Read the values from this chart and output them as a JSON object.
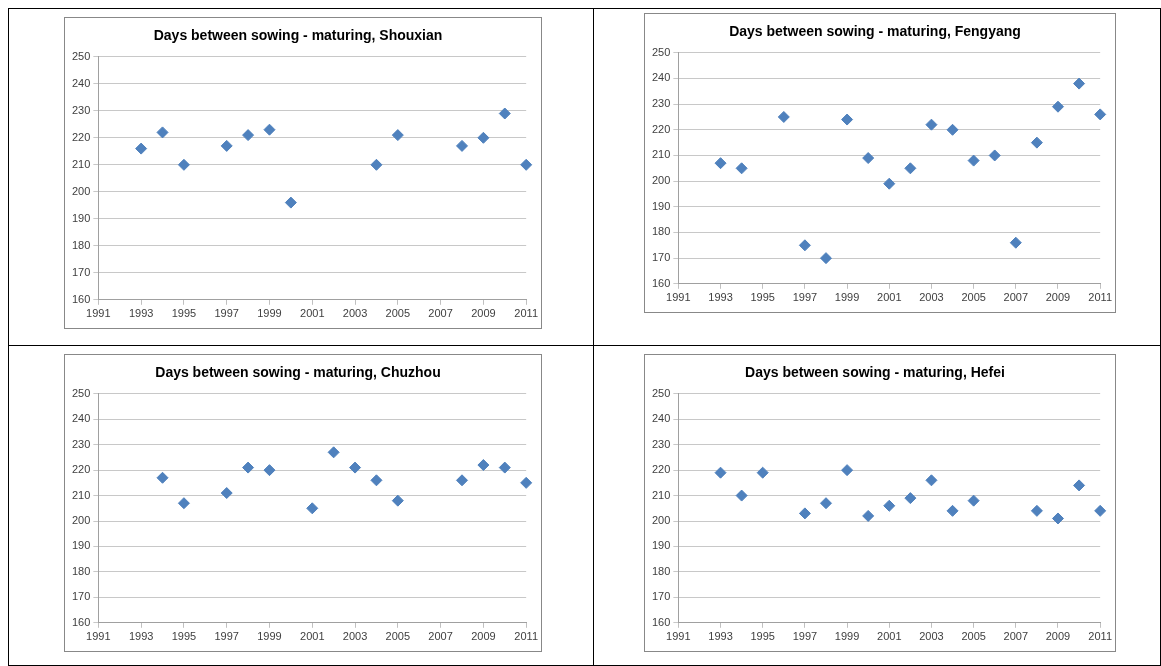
{
  "chart_data": [
    {
      "type": "scatter",
      "title": "Days between sowing - maturing, Shouxian",
      "marker": "diamond",
      "grid": "y",
      "xlim": [
        1991,
        2011
      ],
      "xticks": [
        1991,
        1993,
        1995,
        1997,
        1999,
        2001,
        2003,
        2005,
        2007,
        2009,
        2011
      ],
      "ylim": [
        160,
        250
      ],
      "yticks": [
        160,
        170,
        180,
        190,
        200,
        210,
        220,
        230,
        240,
        250
      ],
      "series": [
        {
          "color": "#4f81bd",
          "x": [
            1993,
            1994,
            1995,
            1997,
            1998,
            1999,
            2000,
            2004,
            2005,
            2008,
            2009,
            2010,
            2011
          ],
          "values": [
            216,
            222,
            210,
            217,
            221,
            223,
            196,
            210,
            221,
            217,
            220,
            229,
            210
          ]
        }
      ]
    },
    {
      "type": "scatter",
      "title": "Days between sowing - maturing, Fengyang",
      "marker": "diamond",
      "grid": "y",
      "xlim": [
        1991,
        2011
      ],
      "xticks": [
        1991,
        1993,
        1995,
        1997,
        1999,
        2001,
        2003,
        2005,
        2007,
        2009,
        2011
      ],
      "ylim": [
        160,
        250
      ],
      "yticks": [
        160,
        170,
        180,
        190,
        200,
        210,
        220,
        230,
        240,
        250
      ],
      "series": [
        {
          "color": "#4f81bd",
          "x": [
            1993,
            1994,
            1996,
            1997,
            1998,
            1999,
            2000,
            2001,
            2002,
            2003,
            2004,
            2005,
            2006,
            2007,
            2008,
            2009,
            2010,
            2011
          ],
          "values": [
            207,
            205,
            225,
            175,
            170,
            224,
            209,
            199,
            205,
            222,
            220,
            208,
            210,
            176,
            215,
            229,
            238,
            226
          ]
        }
      ]
    },
    {
      "type": "scatter",
      "title": "Days between sowing - maturing, Chuzhou",
      "marker": "diamond",
      "grid": "y",
      "xlim": [
        1991,
        2011
      ],
      "xticks": [
        1991,
        1993,
        1995,
        1997,
        1999,
        2001,
        2003,
        2005,
        2007,
        2009,
        2011
      ],
      "ylim": [
        160,
        250
      ],
      "yticks": [
        160,
        170,
        180,
        190,
        200,
        210,
        220,
        230,
        240,
        250
      ],
      "series": [
        {
          "color": "#4f81bd",
          "x": [
            1994,
            1995,
            1997,
            1998,
            1999,
            2001,
            2002,
            2003,
            2004,
            2005,
            2008,
            2009,
            2010,
            2011
          ],
          "values": [
            217,
            207,
            211,
            221,
            220,
            205,
            227,
            221,
            216,
            208,
            216,
            222,
            221,
            215
          ]
        }
      ]
    },
    {
      "type": "scatter",
      "title": "Days between sowing - maturing, Hefei",
      "marker": "diamond",
      "grid": "y",
      "xlim": [
        1991,
        2011
      ],
      "xticks": [
        1991,
        1993,
        1995,
        1997,
        1999,
        2001,
        2003,
        2005,
        2007,
        2009,
        2011
      ],
      "ylim": [
        160,
        250
      ],
      "yticks": [
        160,
        170,
        180,
        190,
        200,
        210,
        220,
        230,
        240,
        250
      ],
      "series": [
        {
          "color": "#4f81bd",
          "x": [
            1993,
            1994,
            1995,
            1997,
            1998,
            1999,
            2000,
            2001,
            2002,
            2003,
            2004,
            2005,
            2008,
            2009,
            2010,
            2011
          ],
          "values": [
            219,
            210,
            219,
            203,
            207,
            220,
            202,
            206,
            209,
            216,
            204,
            208,
            204,
            201,
            214,
            204
          ]
        }
      ]
    }
  ]
}
